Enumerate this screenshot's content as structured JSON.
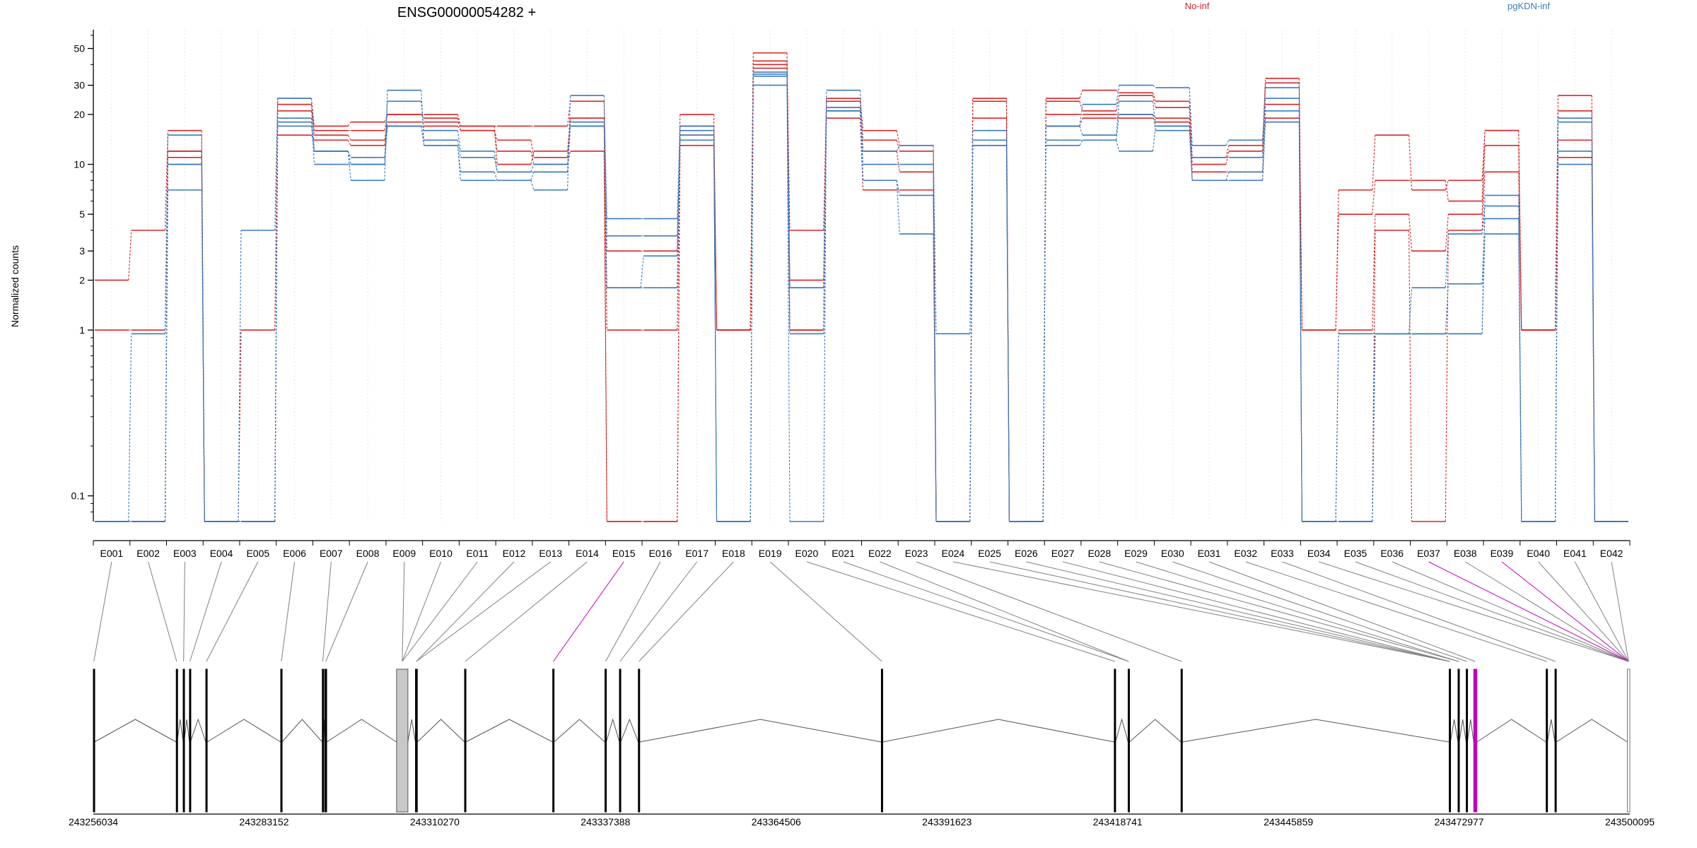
{
  "title": "ENSG00000054282 +",
  "y_axis_label": "Normalized counts",
  "legend": {
    "entries": [
      {
        "label": "No-inf",
        "color": "#d62728"
      },
      {
        "label": "pgKDN-inf",
        "color": "#3a7bbf"
      }
    ]
  },
  "colors": {
    "no_inf": "#d62728",
    "pgkdn_inf": "#3a7bbf",
    "highlight_exon": "#c000c0",
    "grid": "#e6e6e6",
    "axis": "#000000",
    "connector": "#808080",
    "shaded_exon": "#c8c8c8"
  },
  "chart_data": {
    "type": "line",
    "yscale": "log",
    "ylabel": "Normalized counts",
    "yticks": [
      0.1,
      1,
      2,
      3,
      5,
      10,
      20,
      30,
      50
    ],
    "ytick_labels": [
      "0.1",
      "1",
      "2",
      "3",
      "5",
      "10",
      "20",
      "30",
      "50"
    ],
    "ylim": [
      0.07,
      60
    ],
    "zero_value": 0.07,
    "categories": [
      "E001",
      "E002",
      "E003",
      "E004",
      "E005",
      "E006",
      "E007",
      "E008",
      "E009",
      "E010",
      "E011",
      "E012",
      "E013",
      "E014",
      "E015",
      "E016",
      "E017",
      "E018",
      "E019",
      "E020",
      "E021",
      "E022",
      "E023",
      "E024",
      "E025",
      "E026",
      "E027",
      "E028",
      "E029",
      "E030",
      "E031",
      "E032",
      "E033",
      "E034",
      "E035",
      "E036",
      "E037",
      "E038",
      "E039",
      "E040",
      "E041",
      "E042"
    ],
    "grid": true,
    "legend_placement": "top",
    "series": [
      {
        "group": "No-inf",
        "values": [
          2,
          4,
          16,
          0.07,
          1,
          25,
          17,
          18,
          20,
          20,
          17,
          17,
          17,
          24,
          3,
          3,
          20,
          1,
          47,
          4,
          25,
          16,
          13,
          0.07,
          25,
          0.07,
          25,
          28,
          27,
          24,
          11,
          13,
          33,
          1,
          7,
          15,
          7,
          8,
          16,
          1,
          26,
          0.07
        ]
      },
      {
        "group": "No-inf",
        "values": [
          1,
          1,
          11,
          0.07,
          0.07,
          23,
          16,
          16,
          20,
          19,
          16,
          14,
          11,
          19,
          1,
          1,
          17,
          1,
          42,
          2,
          24,
          14,
          12,
          0.07,
          24,
          0.07,
          24,
          21,
          26,
          22,
          10,
          12,
          31,
          1,
          5,
          8,
          8,
          6,
          16,
          1,
          21,
          0.07
        ]
      },
      {
        "group": "No-inf",
        "values": [
          0.07,
          0.07,
          12,
          0.07,
          0.07,
          21,
          15,
          14,
          18,
          18,
          17,
          10,
          12,
          19,
          0.07,
          0.07,
          15,
          1,
          40,
          1,
          22,
          12,
          9,
          0.07,
          19,
          0.07,
          20,
          20,
          20,
          19,
          9,
          9,
          23,
          0.07,
          1,
          5,
          3,
          5,
          13,
          1,
          14,
          0.07
        ]
      },
      {
        "group": "No-inf",
        "values": [
          0.07,
          0.07,
          12,
          0.07,
          0.07,
          15,
          14,
          13,
          17,
          17,
          16,
          12,
          10,
          12,
          0.07,
          0.07,
          13,
          1,
          38,
          1,
          19,
          7,
          7,
          0.07,
          14,
          0.07,
          17,
          19,
          19,
          18,
          8,
          8,
          19,
          0.07,
          0.07,
          4,
          0.07,
          4,
          9,
          1,
          11,
          0.07
        ]
      },
      {
        "group": "pgKDN-inf",
        "values": [
          0.07,
          0.95,
          15,
          0.07,
          4,
          25,
          12,
          8,
          28,
          13,
          8,
          8,
          7,
          26,
          4.7,
          4.7,
          17,
          0.07,
          30,
          0.07,
          28,
          12,
          13,
          0.95,
          16,
          0.07,
          17,
          23,
          30,
          29,
          13,
          14,
          25,
          0.07,
          0.95,
          0.95,
          0.95,
          0.95,
          6.5,
          0.07,
          19,
          0.07
        ]
      },
      {
        "group": "pgKDN-inf",
        "values": [
          0.07,
          0.07,
          7,
          0.07,
          0.07,
          19,
          10,
          10,
          24,
          16,
          12,
          9,
          9,
          18,
          3.7,
          3.7,
          14,
          0.07,
          34,
          0.95,
          21,
          10,
          10,
          0.07,
          14,
          0.07,
          17,
          15,
          24,
          17,
          11,
          11,
          29,
          0.07,
          0.07,
          0.95,
          1.8,
          3.8,
          5.6,
          0.07,
          18,
          0.07
        ]
      },
      {
        "group": "pgKDN-inf",
        "values": [
          0.07,
          0.07,
          10,
          0.07,
          0.07,
          18,
          12,
          11,
          17,
          14,
          11,
          9,
          10,
          17,
          1.8,
          2.8,
          16,
          0.07,
          35,
          1.8,
          22,
          8,
          6.5,
          0.07,
          13,
          0.07,
          14,
          14,
          20,
          16,
          8,
          9,
          21,
          0.07,
          0.07,
          0.95,
          0.95,
          1.9,
          4.7,
          0.07,
          12,
          0.07
        ]
      },
      {
        "group": "pgKDN-inf",
        "values": [
          0.07,
          0.07,
          10,
          0.07,
          0.07,
          17,
          12,
          10,
          17,
          13,
          9,
          8,
          9,
          17,
          1.8,
          1.8,
          15,
          0.07,
          36,
          1.8,
          21,
          8,
          3.8,
          0.07,
          13,
          0.07,
          13,
          14,
          12,
          17,
          8,
          8,
          18,
          0.07,
          0.07,
          0.95,
          0.95,
          0.95,
          3.8,
          0.07,
          10,
          0.07
        ]
      }
    ]
  },
  "gene_model": {
    "coord_min": 243256034,
    "coord_max": 243500095,
    "axis_ticks": [
      {
        "value": 243256034,
        "label": "243256034"
      },
      {
        "value": 243283152,
        "label": "243283152"
      },
      {
        "value": 243310270,
        "label": "243310270"
      },
      {
        "value": 243337388,
        "label": "243337388"
      },
      {
        "value": 243364506,
        "label": "243364506"
      },
      {
        "value": 243391623,
        "label": "243391623"
      },
      {
        "value": 243418741,
        "label": "243418741"
      },
      {
        "value": 243445859,
        "label": "243445859"
      },
      {
        "value": 243472977,
        "label": "243472977"
      },
      {
        "value": 243500095,
        "label": "243500095"
      }
    ],
    "exons": [
      {
        "start": 243256034,
        "end": 243256200
      },
      {
        "start": 243269200,
        "end": 243269350
      },
      {
        "start": 243270300,
        "end": 243270450
      },
      {
        "start": 243271300,
        "end": 243271450
      },
      {
        "start": 243273900,
        "end": 243274100
      },
      {
        "start": 243285800,
        "end": 243286000
      },
      {
        "start": 243292400,
        "end": 243292550
      },
      {
        "start": 243292800,
        "end": 243293100
      },
      {
        "start": 243304200,
        "end": 243306000,
        "shaded": true
      },
      {
        "start": 243307200,
        "end": 243307500
      },
      {
        "start": 243315000,
        "end": 243315200
      },
      {
        "start": 243329000,
        "end": 243329200
      },
      {
        "start": 243337300,
        "end": 243337500
      },
      {
        "start": 243339600,
        "end": 243339800
      },
      {
        "start": 243342600,
        "end": 243342800
      },
      {
        "start": 243381200,
        "end": 243381400
      },
      {
        "start": 243418200,
        "end": 243418400
      },
      {
        "start": 243420400,
        "end": 243420600
      },
      {
        "start": 243428800,
        "end": 243429000
      },
      {
        "start": 243471400,
        "end": 243471600
      },
      {
        "start": 243472800,
        "end": 243473000
      },
      {
        "start": 243474100,
        "end": 243474300
      },
      {
        "start": 243475300,
        "end": 243475800,
        "highlight": true
      },
      {
        "start": 243486800,
        "end": 243487000
      },
      {
        "start": 243488200,
        "end": 243488400
      },
      {
        "start": 243499700,
        "end": 243500095,
        "outline": true
      }
    ],
    "feature_map": [
      0,
      1,
      2,
      3,
      4,
      5,
      6,
      7,
      8,
      8,
      8,
      9,
      9,
      10,
      11,
      12,
      13,
      14,
      15,
      16,
      17,
      17,
      18,
      19,
      19,
      19,
      19,
      20,
      20,
      21,
      22,
      23,
      24,
      25,
      25,
      25,
      25,
      25,
      25,
      25,
      25,
      25
    ],
    "highlight_features": [
      "E015",
      "E037",
      "E039"
    ]
  }
}
